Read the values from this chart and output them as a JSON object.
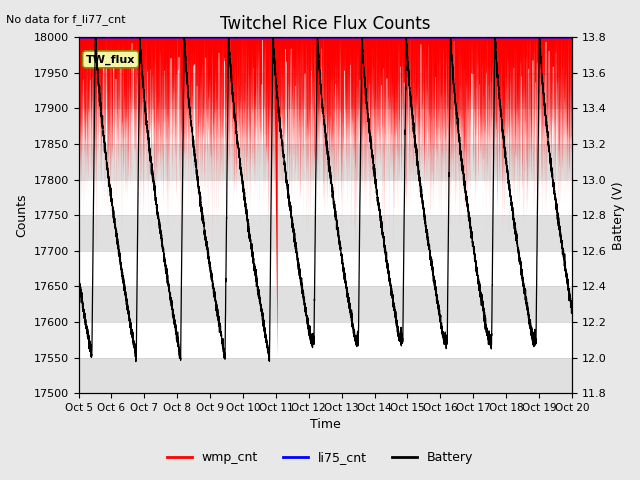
{
  "title": "Twitchel Rice Flux Counts",
  "no_data_text": "No data for f_li77_cnt",
  "xlabel": "Time",
  "ylabel_left": "Counts",
  "ylabel_right": "Battery (V)",
  "ylim_left": [
    17500,
    18000
  ],
  "ylim_right": [
    11.8,
    13.8
  ],
  "yticks_left": [
    17500,
    17550,
    17600,
    17650,
    17700,
    17750,
    17800,
    17850,
    17900,
    17950,
    18000
  ],
  "yticks_right": [
    11.8,
    12.0,
    12.2,
    12.4,
    12.6,
    12.8,
    13.0,
    13.2,
    13.4,
    13.6,
    13.8
  ],
  "xticklabels": [
    "Oct 5",
    "Oct 6",
    "Oct 7",
    "Oct 8",
    "Oct 9",
    "Oct 10",
    "Oct 11",
    "Oct 12",
    "Oct 13",
    "Oct 14",
    "Oct 15",
    "Oct 16",
    "Oct 17",
    "Oct 18",
    "Oct 19",
    "Oct 20"
  ],
  "annotation_text": "TW_flux",
  "wmp_color": "red",
  "li75_color": "blue",
  "battery_color": "black",
  "background_color": "#e8e8e8",
  "plot_bg_color": "white",
  "stripe_color": "#e0e0e0",
  "n_days": 15,
  "seed": 42,
  "wmp_lower_base": 17880,
  "wmp_lower_noise": 60,
  "wmp_upper": 18000,
  "battery_max": 13.85,
  "battery_min_typical": 12.0,
  "battery_period": 1.35
}
